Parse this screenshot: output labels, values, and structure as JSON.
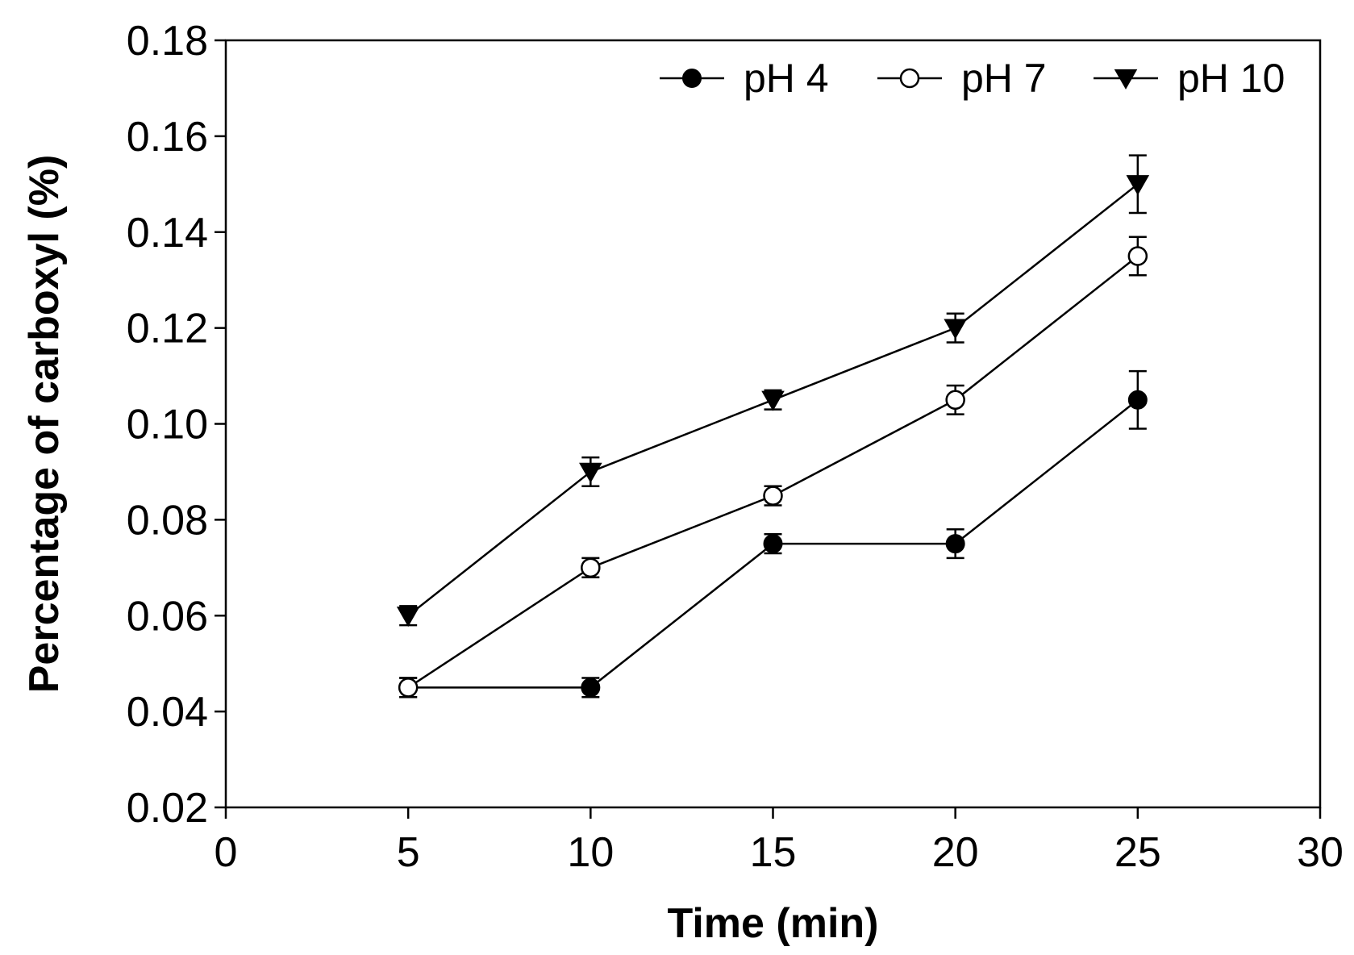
{
  "chart_data": {
    "type": "line",
    "title": "",
    "xlabel": "Time (min)",
    "ylabel": "Percentage of carboxyl (%)",
    "xlim": [
      0,
      30
    ],
    "ylim": [
      0.02,
      0.18
    ],
    "xticks": [
      0,
      5,
      10,
      15,
      20,
      25,
      30
    ],
    "xtick_labels": [
      "0",
      "5",
      "10",
      "15",
      "20",
      "25",
      "30"
    ],
    "yticks": [
      0.02,
      0.04,
      0.06,
      0.08,
      0.1,
      0.12,
      0.14,
      0.16,
      0.18
    ],
    "ytick_labels": [
      "0.02",
      "0.04",
      "0.06",
      "0.08",
      "0.10",
      "0.12",
      "0.14",
      "0.16",
      "0.18"
    ],
    "grid": false,
    "legend_position": "top-right",
    "x": [
      5,
      10,
      15,
      20,
      25
    ],
    "series": [
      {
        "name": "pH 4",
        "marker": "filled-circle",
        "values": [
          0.045,
          0.045,
          0.075,
          0.075,
          0.105
        ],
        "errors": [
          0.002,
          0.002,
          0.002,
          0.003,
          0.006
        ]
      },
      {
        "name": "pH 7",
        "marker": "open-circle",
        "values": [
          0.045,
          0.07,
          0.085,
          0.105,
          0.135
        ],
        "errors": [
          0.002,
          0.002,
          0.002,
          0.003,
          0.004
        ]
      },
      {
        "name": "pH 10",
        "marker": "filled-triangle-down",
        "values": [
          0.06,
          0.09,
          0.105,
          0.12,
          0.15
        ],
        "errors": [
          0.002,
          0.003,
          0.002,
          0.003,
          0.006
        ]
      }
    ]
  }
}
